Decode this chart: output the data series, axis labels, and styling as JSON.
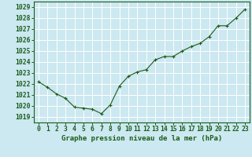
{
  "x": [
    0,
    1,
    2,
    3,
    4,
    5,
    6,
    7,
    8,
    9,
    10,
    11,
    12,
    13,
    14,
    15,
    16,
    17,
    18,
    19,
    20,
    21,
    22,
    23
  ],
  "y": [
    1022.2,
    1021.7,
    1021.1,
    1020.7,
    1019.9,
    1019.8,
    1019.7,
    1019.3,
    1020.1,
    1021.8,
    1022.7,
    1023.1,
    1023.3,
    1024.2,
    1024.5,
    1024.5,
    1025.0,
    1025.4,
    1025.7,
    1026.3,
    1027.3,
    1027.3,
    1028.0,
    1028.8
  ],
  "line_color": "#1a5c1a",
  "marker": "+",
  "marker_size": 4,
  "bg_color": "#cce8f0",
  "grid_color": "#ffffff",
  "ylabel_ticks": [
    1019,
    1020,
    1021,
    1022,
    1023,
    1024,
    1025,
    1026,
    1027,
    1028,
    1029
  ],
  "ylim": [
    1018.5,
    1029.5
  ],
  "xlim": [
    -0.5,
    23.5
  ],
  "xlabel": "Graphe pression niveau de la mer (hPa)",
  "xlabel_fontsize": 6.5,
  "tick_fontsize": 5.8,
  "tick_color": "#1a5c1a",
  "label_color": "#1a5c1a",
  "spine_color": "#1a5c1a"
}
